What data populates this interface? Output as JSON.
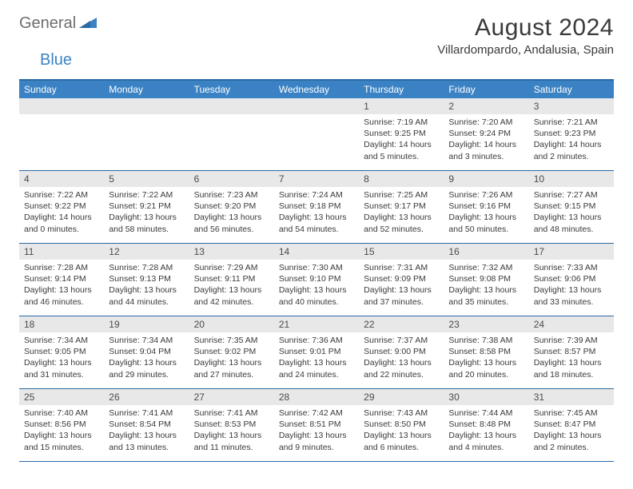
{
  "logo": {
    "part1": "General",
    "part2": "Blue"
  },
  "title": "August 2024",
  "location": "Villardompardo, Andalusia, Spain",
  "colors": {
    "header_bg": "#3b82c4",
    "border": "#2a6aa3",
    "daynum_bg": "#e8e8e8",
    "text": "#3a3a3a",
    "logo_gray": "#6d6d6d"
  },
  "weekdays": [
    "Sunday",
    "Monday",
    "Tuesday",
    "Wednesday",
    "Thursday",
    "Friday",
    "Saturday"
  ],
  "weeks": [
    [
      null,
      null,
      null,
      null,
      {
        "num": "1",
        "sunrise": "Sunrise: 7:19 AM",
        "sunset": "Sunset: 9:25 PM",
        "daylight": "Daylight: 14 hours and 5 minutes."
      },
      {
        "num": "2",
        "sunrise": "Sunrise: 7:20 AM",
        "sunset": "Sunset: 9:24 PM",
        "daylight": "Daylight: 14 hours and 3 minutes."
      },
      {
        "num": "3",
        "sunrise": "Sunrise: 7:21 AM",
        "sunset": "Sunset: 9:23 PM",
        "daylight": "Daylight: 14 hours and 2 minutes."
      }
    ],
    [
      {
        "num": "4",
        "sunrise": "Sunrise: 7:22 AM",
        "sunset": "Sunset: 9:22 PM",
        "daylight": "Daylight: 14 hours and 0 minutes."
      },
      {
        "num": "5",
        "sunrise": "Sunrise: 7:22 AM",
        "sunset": "Sunset: 9:21 PM",
        "daylight": "Daylight: 13 hours and 58 minutes."
      },
      {
        "num": "6",
        "sunrise": "Sunrise: 7:23 AM",
        "sunset": "Sunset: 9:20 PM",
        "daylight": "Daylight: 13 hours and 56 minutes."
      },
      {
        "num": "7",
        "sunrise": "Sunrise: 7:24 AM",
        "sunset": "Sunset: 9:18 PM",
        "daylight": "Daylight: 13 hours and 54 minutes."
      },
      {
        "num": "8",
        "sunrise": "Sunrise: 7:25 AM",
        "sunset": "Sunset: 9:17 PM",
        "daylight": "Daylight: 13 hours and 52 minutes."
      },
      {
        "num": "9",
        "sunrise": "Sunrise: 7:26 AM",
        "sunset": "Sunset: 9:16 PM",
        "daylight": "Daylight: 13 hours and 50 minutes."
      },
      {
        "num": "10",
        "sunrise": "Sunrise: 7:27 AM",
        "sunset": "Sunset: 9:15 PM",
        "daylight": "Daylight: 13 hours and 48 minutes."
      }
    ],
    [
      {
        "num": "11",
        "sunrise": "Sunrise: 7:28 AM",
        "sunset": "Sunset: 9:14 PM",
        "daylight": "Daylight: 13 hours and 46 minutes."
      },
      {
        "num": "12",
        "sunrise": "Sunrise: 7:28 AM",
        "sunset": "Sunset: 9:13 PM",
        "daylight": "Daylight: 13 hours and 44 minutes."
      },
      {
        "num": "13",
        "sunrise": "Sunrise: 7:29 AM",
        "sunset": "Sunset: 9:11 PM",
        "daylight": "Daylight: 13 hours and 42 minutes."
      },
      {
        "num": "14",
        "sunrise": "Sunrise: 7:30 AM",
        "sunset": "Sunset: 9:10 PM",
        "daylight": "Daylight: 13 hours and 40 minutes."
      },
      {
        "num": "15",
        "sunrise": "Sunrise: 7:31 AM",
        "sunset": "Sunset: 9:09 PM",
        "daylight": "Daylight: 13 hours and 37 minutes."
      },
      {
        "num": "16",
        "sunrise": "Sunrise: 7:32 AM",
        "sunset": "Sunset: 9:08 PM",
        "daylight": "Daylight: 13 hours and 35 minutes."
      },
      {
        "num": "17",
        "sunrise": "Sunrise: 7:33 AM",
        "sunset": "Sunset: 9:06 PM",
        "daylight": "Daylight: 13 hours and 33 minutes."
      }
    ],
    [
      {
        "num": "18",
        "sunrise": "Sunrise: 7:34 AM",
        "sunset": "Sunset: 9:05 PM",
        "daylight": "Daylight: 13 hours and 31 minutes."
      },
      {
        "num": "19",
        "sunrise": "Sunrise: 7:34 AM",
        "sunset": "Sunset: 9:04 PM",
        "daylight": "Daylight: 13 hours and 29 minutes."
      },
      {
        "num": "20",
        "sunrise": "Sunrise: 7:35 AM",
        "sunset": "Sunset: 9:02 PM",
        "daylight": "Daylight: 13 hours and 27 minutes."
      },
      {
        "num": "21",
        "sunrise": "Sunrise: 7:36 AM",
        "sunset": "Sunset: 9:01 PM",
        "daylight": "Daylight: 13 hours and 24 minutes."
      },
      {
        "num": "22",
        "sunrise": "Sunrise: 7:37 AM",
        "sunset": "Sunset: 9:00 PM",
        "daylight": "Daylight: 13 hours and 22 minutes."
      },
      {
        "num": "23",
        "sunrise": "Sunrise: 7:38 AM",
        "sunset": "Sunset: 8:58 PM",
        "daylight": "Daylight: 13 hours and 20 minutes."
      },
      {
        "num": "24",
        "sunrise": "Sunrise: 7:39 AM",
        "sunset": "Sunset: 8:57 PM",
        "daylight": "Daylight: 13 hours and 18 minutes."
      }
    ],
    [
      {
        "num": "25",
        "sunrise": "Sunrise: 7:40 AM",
        "sunset": "Sunset: 8:56 PM",
        "daylight": "Daylight: 13 hours and 15 minutes."
      },
      {
        "num": "26",
        "sunrise": "Sunrise: 7:41 AM",
        "sunset": "Sunset: 8:54 PM",
        "daylight": "Daylight: 13 hours and 13 minutes."
      },
      {
        "num": "27",
        "sunrise": "Sunrise: 7:41 AM",
        "sunset": "Sunset: 8:53 PM",
        "daylight": "Daylight: 13 hours and 11 minutes."
      },
      {
        "num": "28",
        "sunrise": "Sunrise: 7:42 AM",
        "sunset": "Sunset: 8:51 PM",
        "daylight": "Daylight: 13 hours and 9 minutes."
      },
      {
        "num": "29",
        "sunrise": "Sunrise: 7:43 AM",
        "sunset": "Sunset: 8:50 PM",
        "daylight": "Daylight: 13 hours and 6 minutes."
      },
      {
        "num": "30",
        "sunrise": "Sunrise: 7:44 AM",
        "sunset": "Sunset: 8:48 PM",
        "daylight": "Daylight: 13 hours and 4 minutes."
      },
      {
        "num": "31",
        "sunrise": "Sunrise: 7:45 AM",
        "sunset": "Sunset: 8:47 PM",
        "daylight": "Daylight: 13 hours and 2 minutes."
      }
    ]
  ]
}
